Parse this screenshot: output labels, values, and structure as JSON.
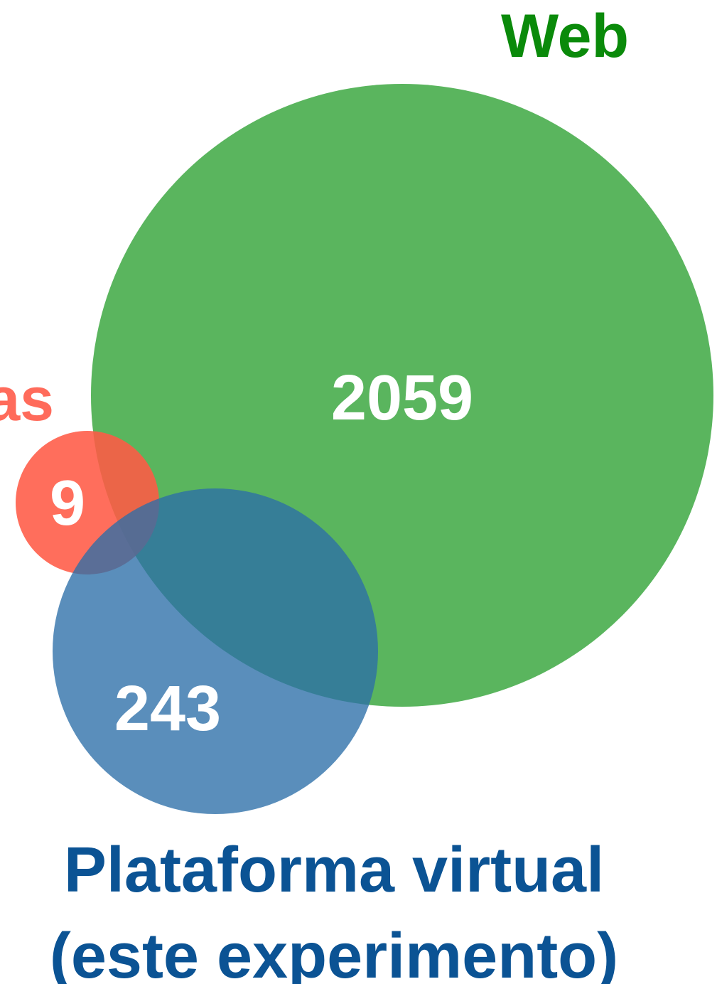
{
  "sets": {
    "web": {
      "label": "Web",
      "count": "2059",
      "color": "#4caf50",
      "label_color": "#0a8a0a"
    },
    "left": {
      "label": "as",
      "count": "9",
      "color": "#ff5a45",
      "label_color": "#ff6b5b"
    },
    "platform": {
      "label_line1": "Plataforma virtual",
      "label_line2": "(este experimento)",
      "count": "243",
      "color": "#3f7db1",
      "label_color": "#0b5394"
    }
  }
}
